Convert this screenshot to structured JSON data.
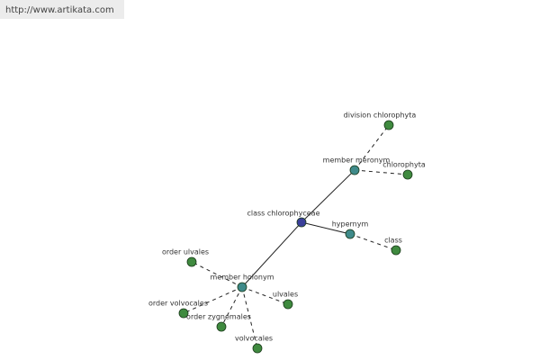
{
  "header": {
    "url": "http://www.artikata.com"
  },
  "nodes": [
    {
      "label": "class chlorophyceae"
    },
    {
      "label": "member meronym"
    },
    {
      "label": "division chlorophyta"
    },
    {
      "label": "chlorophyta"
    },
    {
      "label": "hypernym"
    },
    {
      "label": "class"
    },
    {
      "label": "member holonym"
    },
    {
      "label": "order ulvales"
    },
    {
      "label": "ulvales"
    },
    {
      "label": "order volvocales"
    },
    {
      "label": "order zygnemales"
    },
    {
      "label": "volvocales"
    }
  ]
}
